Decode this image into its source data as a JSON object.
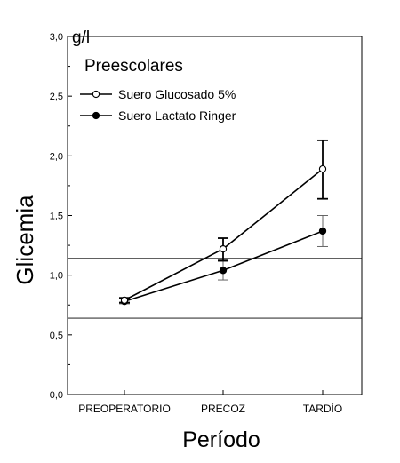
{
  "chart_data": {
    "type": "line",
    "subtitle": "Preescolares",
    "unit": "g/l",
    "xlabel": "Período",
    "ylabel": "Glicemia",
    "categories": [
      "PREOPERATORIO",
      "PRECOZ",
      "TARDÍO"
    ],
    "ylim": [
      0,
      3
    ],
    "yticks": [
      "0,0",
      "0,5",
      "1,0",
      "1,5",
      "2,0",
      "2,5",
      "3,0"
    ],
    "grid": false,
    "legend_position": "top-left",
    "reference_lines": [
      0.64,
      1.14
    ],
    "series": [
      {
        "name": "Suero  Glucosado 5%",
        "marker": "open-circle",
        "values": [
          0.79,
          1.22,
          1.89
        ],
        "error_low": [
          0.77,
          1.12,
          1.64
        ],
        "error_high": [
          0.81,
          1.31,
          2.13
        ]
      },
      {
        "name": "Suero Lactato Ringer",
        "marker": "filled-circle",
        "values": [
          0.78,
          1.04,
          1.37
        ],
        "error_low": [
          0.76,
          0.96,
          1.24
        ],
        "error_high": [
          0.8,
          1.13,
          1.5
        ]
      }
    ]
  }
}
